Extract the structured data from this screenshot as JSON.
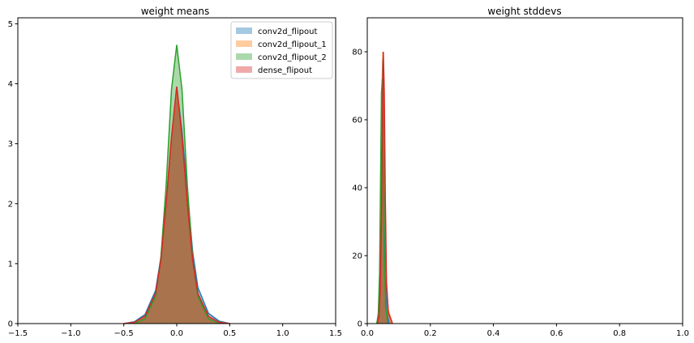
{
  "chart_data": [
    {
      "type": "area",
      "title": "weight means",
      "xlim": [
        -1.5,
        1.5
      ],
      "ylim": [
        0,
        5.1
      ],
      "xticks": [
        "−1.5",
        "−1.0",
        "−0.5",
        "0.0",
        "0.5",
        "1.0",
        "1.5"
      ],
      "xtick_values": [
        -1.5,
        -1.0,
        -0.5,
        0.0,
        0.5,
        1.0,
        1.5
      ],
      "yticks": [
        "0",
        "1",
        "2",
        "3",
        "4",
        "5"
      ],
      "ytick_values": [
        0,
        1,
        2,
        3,
        4,
        5
      ],
      "legend_position": "top-right",
      "series": [
        {
          "name": "conv2d_flipout",
          "color": "#1f77b4",
          "x": [
            -0.5,
            -0.4,
            -0.3,
            -0.2,
            -0.15,
            -0.1,
            -0.05,
            0.0,
            0.05,
            0.1,
            0.15,
            0.2,
            0.3,
            0.4,
            0.5
          ],
          "y": [
            0.0,
            0.03,
            0.15,
            0.55,
            1.1,
            2.0,
            3.1,
            3.95,
            3.2,
            2.2,
            1.2,
            0.6,
            0.17,
            0.04,
            0.0
          ]
        },
        {
          "name": "conv2d_flipout_1",
          "color": "#ff7f0e",
          "x": [
            -0.5,
            -0.4,
            -0.3,
            -0.2,
            -0.15,
            -0.1,
            -0.05,
            0.0,
            0.05,
            0.1,
            0.15,
            0.2,
            0.3,
            0.4,
            0.5
          ],
          "y": [
            0.0,
            0.02,
            0.12,
            0.5,
            1.05,
            2.0,
            3.1,
            3.9,
            3.1,
            2.0,
            1.05,
            0.5,
            0.12,
            0.02,
            0.0
          ]
        },
        {
          "name": "conv2d_flipout_2",
          "color": "#2ca02c",
          "x": [
            -0.4,
            -0.3,
            -0.2,
            -0.15,
            -0.1,
            -0.05,
            0.0,
            0.05,
            0.1,
            0.15,
            0.2,
            0.3,
            0.4
          ],
          "y": [
            0.0,
            0.08,
            0.45,
            1.1,
            2.3,
            3.9,
            4.65,
            3.9,
            2.3,
            1.1,
            0.45,
            0.08,
            0.0
          ]
        },
        {
          "name": "dense_flipout",
          "color": "#d62728",
          "x": [
            -0.5,
            -0.4,
            -0.3,
            -0.2,
            -0.15,
            -0.1,
            -0.05,
            0.0,
            0.05,
            0.1,
            0.15,
            0.2,
            0.3,
            0.4,
            0.5
          ],
          "y": [
            0.0,
            0.02,
            0.12,
            0.5,
            1.05,
            2.0,
            3.1,
            3.95,
            3.1,
            2.0,
            1.05,
            0.5,
            0.12,
            0.02,
            0.0
          ]
        }
      ]
    },
    {
      "type": "area",
      "title": "weight stddevs",
      "xlim": [
        0,
        1.0
      ],
      "ylim": [
        0,
        90
      ],
      "xticks": [
        "0.0",
        "0.2",
        "0.4",
        "0.6",
        "0.8",
        "1.0"
      ],
      "xtick_values": [
        0.0,
        0.2,
        0.4,
        0.6,
        0.8,
        1.0
      ],
      "yticks": [
        "0",
        "20",
        "40",
        "60",
        "80"
      ],
      "ytick_values": [
        0,
        20,
        40,
        60,
        80
      ],
      "series": [
        {
          "name": "conv2d_flipout",
          "color": "#1f77b4",
          "x": [
            0.03,
            0.035,
            0.04,
            0.043,
            0.046,
            0.049,
            0.052,
            0.055,
            0.058,
            0.062,
            0.07
          ],
          "y": [
            0,
            2,
            12,
            35,
            65,
            78,
            60,
            30,
            10,
            3,
            0
          ]
        },
        {
          "name": "conv2d_flipout_1",
          "color": "#ff7f0e",
          "x": [
            0.03,
            0.035,
            0.04,
            0.044,
            0.047,
            0.05,
            0.053,
            0.056,
            0.06,
            0.066,
            0.08
          ],
          "y": [
            0,
            2,
            10,
            32,
            62,
            80,
            70,
            40,
            14,
            4,
            0
          ]
        },
        {
          "name": "conv2d_flipout_2",
          "color": "#2ca02c",
          "x": [
            0.03,
            0.035,
            0.039,
            0.042,
            0.045,
            0.048,
            0.051,
            0.054,
            0.058,
            0.065
          ],
          "y": [
            0,
            3,
            15,
            40,
            68,
            72,
            50,
            20,
            5,
            0
          ]
        },
        {
          "name": "dense_flipout",
          "color": "#d62728",
          "x": [
            0.032,
            0.037,
            0.041,
            0.045,
            0.048,
            0.051,
            0.054,
            0.057,
            0.061,
            0.067,
            0.08
          ],
          "y": [
            0,
            2,
            10,
            30,
            60,
            80,
            68,
            38,
            12,
            3,
            0
          ]
        }
      ]
    }
  ]
}
